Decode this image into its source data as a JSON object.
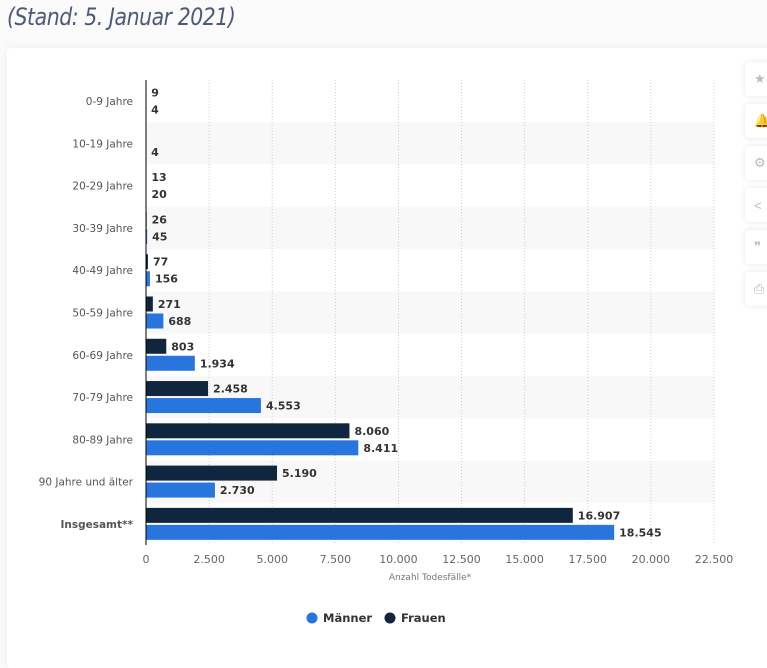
{
  "header": {
    "subtitle": "(Stand: 5. Januar 2021)"
  },
  "side_buttons": [
    {
      "icon": "star-icon",
      "glyph": "★"
    },
    {
      "icon": "bell-icon",
      "glyph": "🔔"
    },
    {
      "icon": "gear-icon",
      "glyph": "⚙"
    },
    {
      "icon": "share-icon",
      "glyph": "<"
    },
    {
      "icon": "quote-icon",
      "glyph": "❞"
    },
    {
      "icon": "print-icon",
      "glyph": "⎙"
    }
  ],
  "chart_data": {
    "type": "bar",
    "orientation": "horizontal",
    "categories": [
      "0-9 Jahre",
      "10-19 Jahre",
      "20-29 Jahre",
      "30-39 Jahre",
      "40-49 Jahre",
      "50-59 Jahre",
      "60-69 Jahre",
      "70-79 Jahre",
      "80-89 Jahre",
      "90 Jahre und älter",
      "Insgesamt**"
    ],
    "series": [
      {
        "name": "Frauen",
        "color": "#10263f",
        "values": [
          9,
          null,
          13,
          26,
          77,
          271,
          803,
          2458,
          8060,
          5190,
          16907
        ],
        "labels": [
          "9",
          "",
          "13",
          "26",
          "77",
          "271",
          "803",
          "2.458",
          "8.060",
          "5.190",
          "16.907"
        ]
      },
      {
        "name": "Männer",
        "color": "#2876dd",
        "values": [
          4,
          4,
          20,
          45,
          156,
          688,
          1934,
          4553,
          8411,
          2730,
          18545
        ],
        "labels": [
          "4",
          "4",
          "20",
          "45",
          "156",
          "688",
          "1.934",
          "4.553",
          "8.411",
          "2.730",
          "18.545"
        ]
      }
    ],
    "xlabel": "Anzahl Todesfälle*",
    "xlim": [
      0,
      22500
    ],
    "xticks": [
      0,
      2500,
      5000,
      7500,
      10000,
      12500,
      15000,
      17500,
      20000,
      22500
    ],
    "xtick_labels": [
      "0",
      "2.500",
      "5.000",
      "7.500",
      "10.000",
      "12.500",
      "15.000",
      "17.500",
      "20.000",
      "22.500"
    ],
    "legend": {
      "placement": "bottom",
      "entries": [
        {
          "label": "Männer",
          "color": "#2876dd"
        },
        {
          "label": "Frauen",
          "color": "#10263f"
        }
      ]
    },
    "grid": true
  }
}
